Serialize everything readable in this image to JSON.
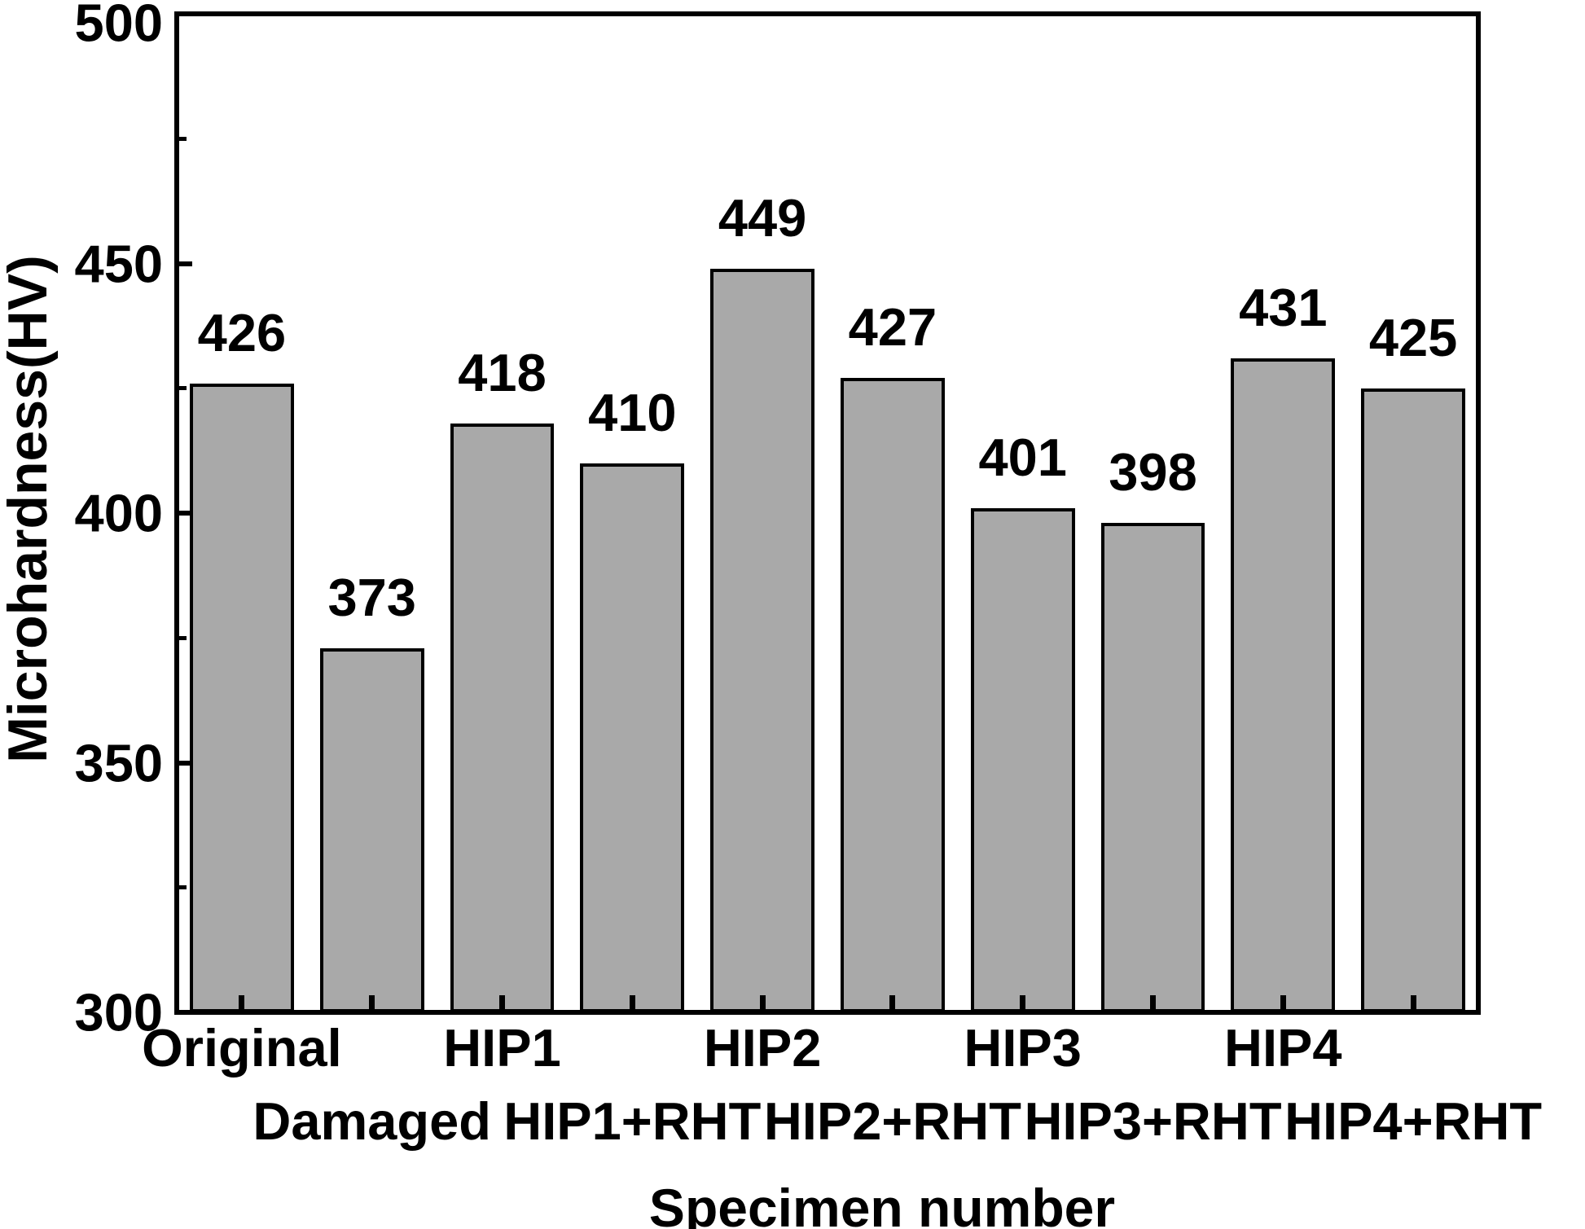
{
  "figure": {
    "background": "#ffffff",
    "text_color": "#000000"
  },
  "chart_data": {
    "type": "bar",
    "title": "",
    "xlabel": "Specimen number",
    "ylabel": "Microhardness(HV)",
    "categories": [
      "Original",
      "Damaged",
      "HIP1",
      "HIP1+RHT",
      "HIP2",
      "HIP2+RHT",
      "HIP3",
      "HIP3+RHT",
      "HIP4",
      "HIP4+RHT"
    ],
    "values": [
      426,
      373,
      418,
      410,
      449,
      427,
      401,
      398,
      431,
      425
    ],
    "value_labels_shown": true,
    "ylim": [
      300,
      500
    ],
    "yticks_major": [
      300,
      350,
      400,
      450,
      500
    ],
    "yticks_minor": [
      325,
      375,
      425,
      475
    ],
    "x_tick_label_layout": "staggered-two-rows",
    "grid": false,
    "legend": "none",
    "bar_fill": "#a9a9a9",
    "bar_edge": "#000000",
    "bar_width_fraction": 0.8
  }
}
